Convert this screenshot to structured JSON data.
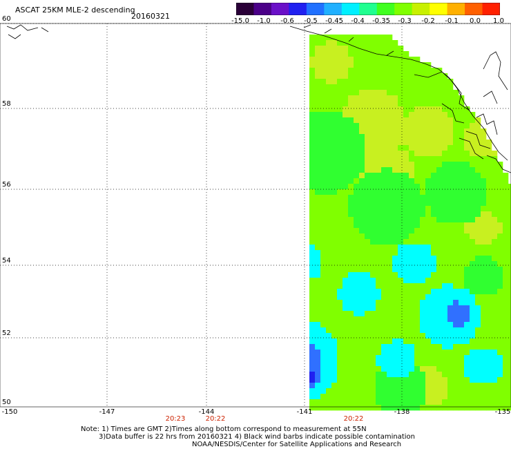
{
  "header": {
    "title": "ASCAT 25KM MLE-2 descending",
    "date": "20160321"
  },
  "colorbar": {
    "labels": [
      "-15.0",
      "-1.0",
      "-0.6",
      "-0.5",
      "-0.45",
      "-0.4",
      "-0.35",
      "-0.3",
      "-0.2",
      "-0.1",
      "0.0",
      "1.0"
    ],
    "colors": [
      "#2a0038",
      "#4b0088",
      "#6a10c8",
      "#2020f0",
      "#2070ff",
      "#20b0ff",
      "#00f0ff",
      "#20ff90",
      "#40ff20",
      "#80ff00",
      "#c8f000",
      "#ffff00",
      "#ffb000",
      "#ff6000",
      "#ff2000"
    ]
  },
  "axes": {
    "lat_labels": [
      "60",
      "58",
      "56",
      "54",
      "52",
      "50"
    ],
    "lon_labels": [
      "-150",
      "-147",
      "-144",
      "-141",
      "-138",
      "-135"
    ]
  },
  "pass_times": [
    "20:23",
    "20:22",
    "20:22"
  ],
  "notes": {
    "line1": "Note: 1) Times are GMT 2)Times along bottom correspond to measurement at 55N",
    "line2": "3)Data buffer is 22 hrs from 20160321 4) Black wind barbs indicate possible contamination",
    "line3": "NOAA/NESDIS/Center for Satellite Applications and Research"
  },
  "palette": {
    "lime": "#80ff00",
    "green": "#30ff30",
    "cyan": "#00ffff",
    "blue": "#3070ff",
    "navy": "#2020f0",
    "purple": "#4b0088",
    "pale": "#c8f020"
  }
}
